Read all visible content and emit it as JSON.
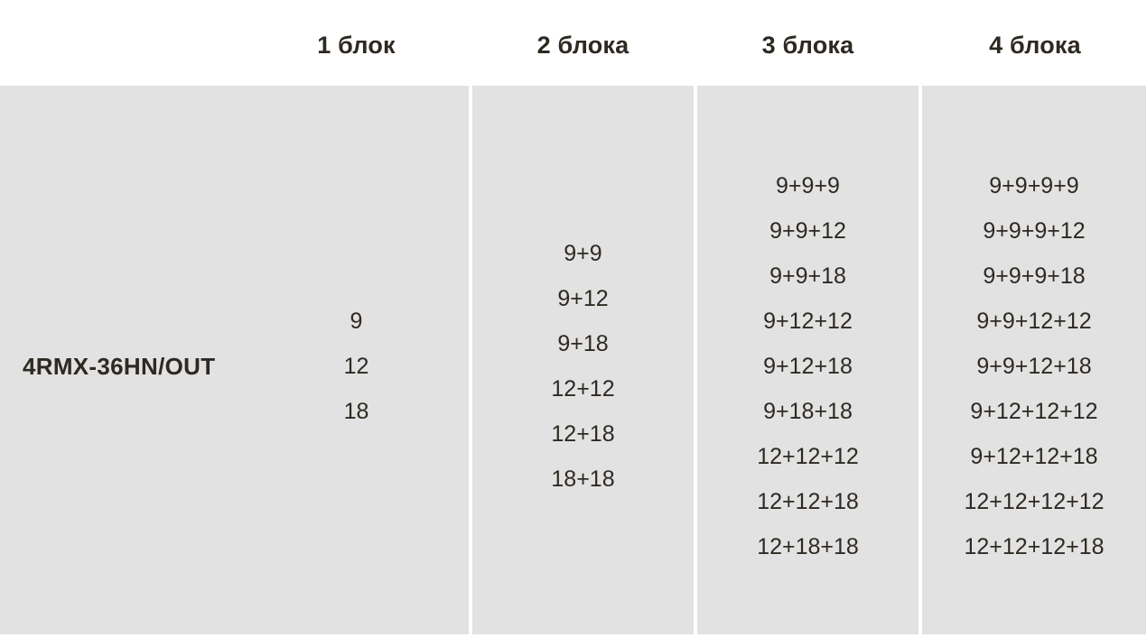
{
  "table": {
    "row_label": "4RMX-36HN/OUT",
    "columns": [
      {
        "header": "1 блок",
        "values": [
          "9",
          "12",
          "18"
        ]
      },
      {
        "header": "2 блока",
        "values": [
          "9+9",
          "9+12",
          "9+18",
          "12+12",
          "12+18",
          "18+18"
        ]
      },
      {
        "header": "3 блока",
        "values": [
          "9+9+9",
          "9+9+12",
          "9+9+18",
          "9+12+12",
          "9+12+18",
          "9+18+18",
          "12+12+12",
          "12+12+18",
          "12+18+18"
        ]
      },
      {
        "header": "4 блока",
        "values": [
          "9+9+9+9",
          "9+9+9+12",
          "9+9+9+18",
          "9+9+12+12",
          "9+9+12+18",
          "9+12+12+12",
          "9+12+12+18",
          "12+12+12+12",
          "12+12+12+18"
        ]
      }
    ]
  },
  "colors": {
    "page_background": "#ffffff",
    "cell_background": "#e2e2e2",
    "text": "#2e2922"
  }
}
